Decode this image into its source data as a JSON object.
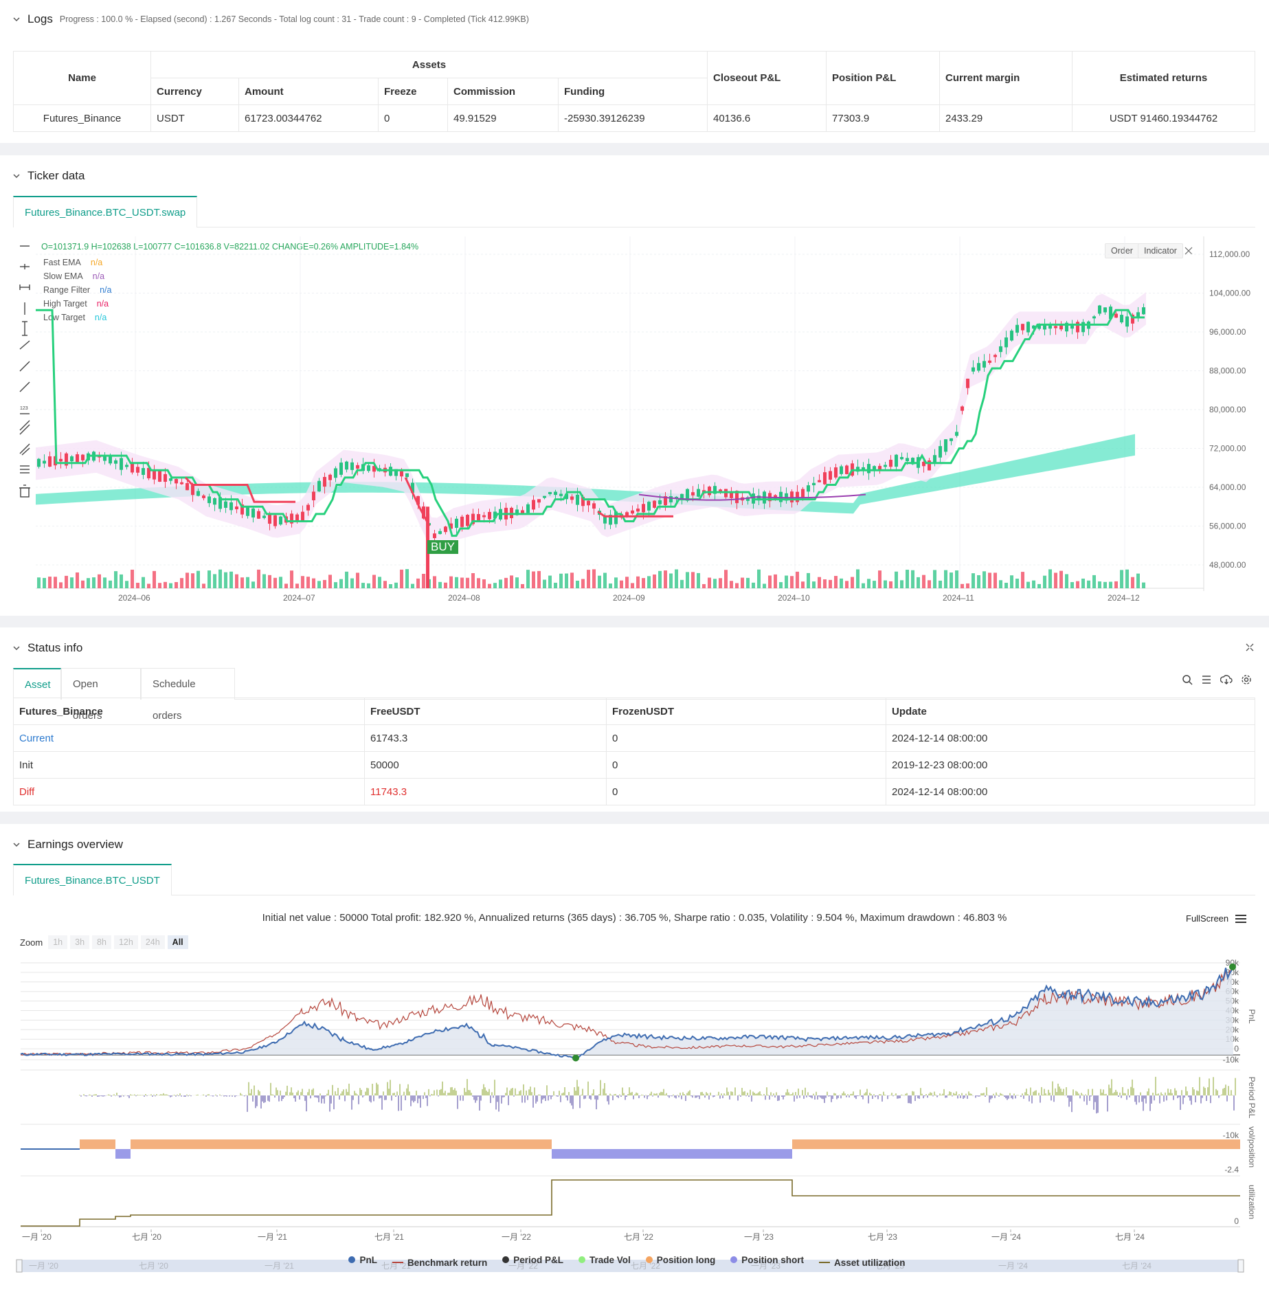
{
  "logs": {
    "title": "Logs",
    "summary": "Progress : 100.0 % - Elapsed (second) : 1.267  Seconds - Total log count : 31 - Trade count : 9 - Completed (Tick 412.99KB)",
    "table": {
      "h_name": "Name",
      "h_assets": "Assets",
      "h_closeout": "Closeout P&L",
      "h_position": "Position P&L",
      "h_margin": "Current margin",
      "h_est": "Estimated returns",
      "h_currency": "Currency",
      "h_amount": "Amount",
      "h_freeze": "Freeze",
      "h_commission": "Commission",
      "h_funding": "Funding",
      "row": {
        "name": "Futures_Binance",
        "currency": "USDT",
        "amount": "61723.00344762",
        "freeze": "0",
        "commission": "49.91529",
        "funding": "-25930.39126239",
        "closeout": "40136.6",
        "position": "77303.9",
        "margin": "2433.29",
        "est": "USDT 91460.19344762"
      }
    }
  },
  "ticker": {
    "title": "Ticker data",
    "tab": "Futures_Binance.BTC_USDT.swap",
    "ohlc": "O=101371.9 H=102638 L=100777 C=101636.8 V=82211.02 CHANGE=0.26% AMPLITUDE=1.84%",
    "legend": [
      {
        "name": "Fast EMA",
        "val": "n/a",
        "color": "#f5a623"
      },
      {
        "name": "Slow EMA",
        "val": "n/a",
        "color": "#9b59b6"
      },
      {
        "name": "Range Filter",
        "val": "n/a",
        "color": "#2e7bcf"
      },
      {
        "name": "High Target",
        "val": "n/a",
        "color": "#e91e63"
      },
      {
        "name": "Low Target",
        "val": "n/a",
        "color": "#26c6da"
      }
    ],
    "order_btn": "Order",
    "indicator_btn": "Indicator",
    "buy_label": "BUY",
    "y_ticks": [
      "112,000.00",
      "104,000.00",
      "96,000.00",
      "88,000.00",
      "80,000.00",
      "72,000.00",
      "64,000.00",
      "56,000.00",
      "48,000.00"
    ],
    "x_ticks": [
      "2024–06",
      "2024–07",
      "2024–08",
      "2024–09",
      "2024–10",
      "2024–11",
      "2024–12"
    ]
  },
  "status": {
    "title": "Status info",
    "tabs": [
      "Asset",
      "Open orders",
      "Schedule orders"
    ],
    "headers": [
      "Futures_Binance",
      "FreeUSDT",
      "FrozenUSDT",
      "Update"
    ],
    "rows": [
      {
        "label": "Current",
        "free": "61743.3",
        "frozen": "0",
        "update": "2024-12-14 08:00:00"
      },
      {
        "label": "Init",
        "free": "50000",
        "frozen": "0",
        "update": "2019-12-23 08:00:00"
      },
      {
        "label": "Diff",
        "free": "11743.3",
        "frozen": "0",
        "update": "2024-12-14 08:00:00"
      }
    ]
  },
  "earnings": {
    "title": "Earnings overview",
    "tab": "Futures_Binance.BTC_USDT",
    "summary": "Initial net value : 50000 Total profit: 182.920 %, Annualized returns (365 days) : 36.705 %, Sharpe ratio : 0.035, Volatility : 9.504 %, Maximum drawdown : 46.803 %",
    "fullscreen": "FullScreen",
    "zoom_label": "Zoom",
    "zoom_buttons": [
      "1h",
      "3h",
      "8h",
      "12h",
      "24h",
      "All"
    ],
    "pnl_ticks": [
      "90k",
      "80k",
      "70k",
      "60k",
      "50k",
      "40k",
      "30k",
      "20k",
      "10k",
      "0",
      "-10k"
    ],
    "period_ticks": [
      "-10k"
    ],
    "pos_ticks": [
      "-2.4"
    ],
    "util_ticks": [
      "0"
    ],
    "axis_titles": [
      "PnL",
      "Period P&L",
      "vol/position",
      "utilization"
    ],
    "x_ticks": [
      "一月 '20",
      "七月 '20",
      "一月 '21",
      "七月 '21",
      "一月 '22",
      "七月 '22",
      "一月 '23",
      "七月 '23",
      "一月 '24",
      "七月 '24"
    ],
    "legend": [
      {
        "name": "PnL",
        "color": "#3d6bb0",
        "kind": "dot"
      },
      {
        "name": "Benchmark return",
        "color": "#b5453b",
        "kind": "line"
      },
      {
        "name": "Period P&L",
        "color": "#333333",
        "kind": "dot"
      },
      {
        "name": "Trade Vol",
        "color": "#90ee7e",
        "kind": "dot"
      },
      {
        "name": "Position long",
        "color": "#f4a460",
        "kind": "dot"
      },
      {
        "name": "Position short",
        "color": "#8c8ce6",
        "kind": "dot"
      },
      {
        "name": "Asset utilization",
        "color": "#7a6a2a",
        "kind": "line"
      }
    ]
  },
  "colors": {
    "accent": "#0f9d8a",
    "up": "#26c281",
    "down": "#f0405a"
  }
}
